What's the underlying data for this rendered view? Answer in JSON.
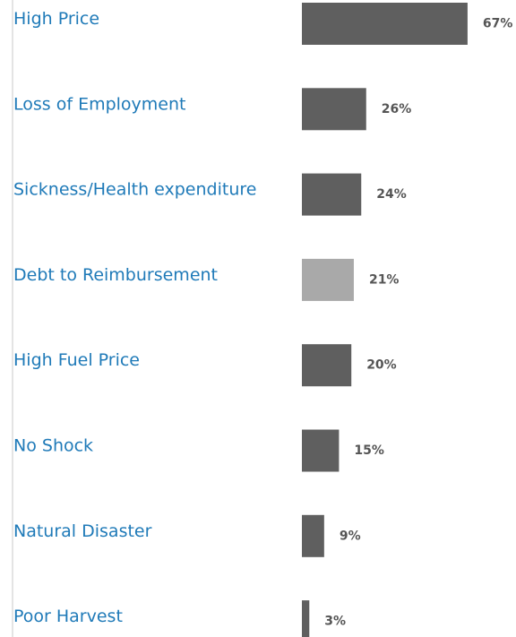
{
  "chart_data": {
    "type": "barh",
    "categories": [
      "High Price",
      "Loss of Employment",
      "Sickness/Health expenditure",
      "Debt to Reimbursement",
      "High Fuel Price",
      "No Shock",
      "Natural Disaster",
      "Poor Harvest"
    ],
    "values": [
      67,
      26,
      24,
      21,
      20,
      15,
      9,
      3
    ],
    "value_labels": [
      "67%",
      "26%",
      "24%",
      "21%",
      "20%",
      "15%",
      "9%",
      "3%"
    ],
    "colors": [
      "#5f5f5f",
      "#5f5f5f",
      "#5f5f5f",
      "#a9a9a9",
      "#5f5f5f",
      "#5f5f5f",
      "#5f5f5f",
      "#5f5f5f"
    ]
  }
}
